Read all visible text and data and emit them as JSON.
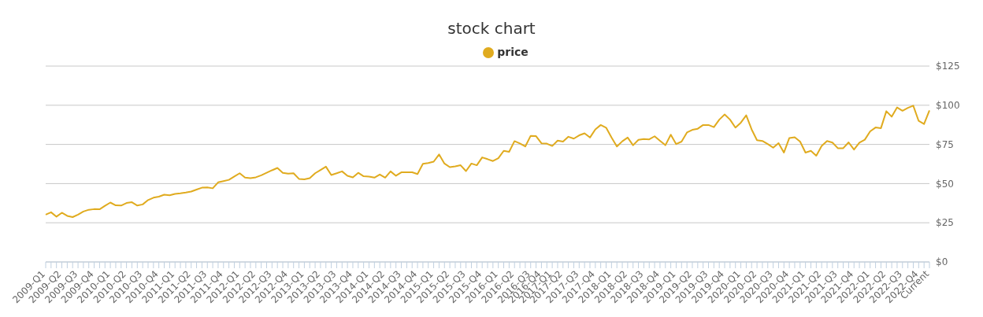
{
  "chart_data": {
    "type": "line",
    "title": "stock chart",
    "categories": [
      "2009-Q1",
      null,
      null,
      "2009-Q2",
      null,
      null,
      "2009-Q3",
      null,
      null,
      "2009-Q4",
      null,
      null,
      "2010-Q1",
      null,
      null,
      "2010-Q2",
      null,
      null,
      "2010-Q3",
      null,
      null,
      "2010-Q4",
      null,
      null,
      "2011-Q1",
      null,
      null,
      "2011-Q2",
      null,
      null,
      "2011-Q3",
      null,
      null,
      "2011-Q4",
      null,
      null,
      "2012-Q1",
      null,
      null,
      "2012-Q2",
      null,
      null,
      "2012-Q3",
      null,
      null,
      "2012-Q4",
      null,
      null,
      "2013-Q1",
      null,
      null,
      "2013-Q2",
      null,
      null,
      "2013-Q3",
      null,
      null,
      "2013-Q4",
      null,
      null,
      "2014-Q1",
      null,
      null,
      "2014-Q2",
      null,
      null,
      "2014-Q3",
      null,
      null,
      "2014-Q4",
      null,
      null,
      "2015-Q1",
      null,
      null,
      "2015-Q2",
      null,
      null,
      "2015-Q3",
      null,
      null,
      "2015-Q4",
      null,
      null,
      "2016-Q1",
      null,
      null,
      "2016-Q2",
      null,
      null,
      "2016-Q3",
      null,
      "2016-Q4",
      null,
      "2017-Q1",
      null,
      "2017-Q2",
      null,
      null,
      "2017-Q3",
      null,
      null,
      "2017-Q4",
      null,
      null,
      "2018-Q1",
      null,
      null,
      "2018-Q2",
      null,
      null,
      "2018-Q3",
      null,
      null,
      "2018-Q4",
      null,
      null,
      "2019-Q1",
      null,
      null,
      "2019-Q2",
      null,
      null,
      "2019-Q3",
      null,
      null,
      "2019-Q4",
      null,
      null,
      "2020-Q1",
      null,
      null,
      "2020-Q2",
      null,
      null,
      "2020-Q3",
      null,
      null,
      "2020-Q4",
      null,
      null,
      "2021-Q1",
      null,
      null,
      "2021-Q2",
      null,
      null,
      "2021-Q3",
      null,
      null,
      "2021-Q4",
      null,
      null,
      "2022-Q1",
      null,
      null,
      "2022-Q2",
      null,
      null,
      "2022-Q3",
      null,
      null,
      "2022-Q4",
      null,
      "Current"
    ],
    "series": [
      {
        "name": "price",
        "color": "#e0ab1f",
        "values": [
          30.2,
          31.7,
          28.9,
          31.4,
          29.4,
          28.6,
          30.2,
          32.2,
          33.3,
          33.7,
          33.6,
          35.8,
          37.9,
          36.1,
          36,
          37.6,
          38.1,
          36,
          36.7,
          39.5,
          41,
          41.7,
          42.9,
          42.5,
          43.4,
          43.8,
          44.3,
          44.9,
          46.2,
          47.4,
          47.6,
          47,
          50.8,
          51.6,
          52.4,
          54.5,
          56.6,
          53.8,
          53.5,
          54,
          55.3,
          56.9,
          58.5,
          60,
          56.9,
          56.3,
          56.6,
          53,
          52.7,
          53.5,
          56.6,
          58.7,
          60.8,
          55.5,
          56.6,
          57.8,
          55,
          54,
          56.9,
          54.7,
          54.5,
          53.8,
          55.8,
          53.8,
          57.8,
          55,
          57.2,
          57.2,
          57.2,
          56.1,
          62.6,
          63.1,
          64,
          68.6,
          62.8,
          60.5,
          61,
          61.7,
          58,
          62.8,
          61.7,
          66.7,
          65.6,
          64.4,
          66.2,
          70.9,
          70.3,
          77.1,
          75.6,
          73.7,
          80.5,
          80.3,
          75.7,
          75.5,
          74,
          77.4,
          76.8,
          79.9,
          78.7,
          80.8,
          82.1,
          79.4,
          84.6,
          87.4,
          85.7,
          79.4,
          73.7,
          77,
          79.4,
          74.5,
          77.9,
          78.4,
          78.2,
          80.2,
          77.3,
          74.5,
          81.2,
          75.2,
          76.8,
          82.6,
          84.3,
          85,
          87.4,
          87.4,
          86,
          90.8,
          94.1,
          90.8,
          85.7,
          88.9,
          93.6,
          84.6,
          77.7,
          77.2,
          75.2,
          72.9,
          75.8,
          69.8,
          79.1,
          79.6,
          76.8,
          69.8,
          70.9,
          67.8,
          74,
          77.2,
          76.2,
          72.6,
          72.6,
          76.3,
          71.7,
          76.1,
          78,
          83.3,
          85.8,
          85.4,
          96.2,
          92.7,
          98.6,
          96.5,
          98.3,
          99.7,
          90,
          88,
          96.7
        ]
      }
    ],
    "ylim": [
      0,
      125
    ],
    "yticks": [
      {
        "value": 0,
        "label": "$0"
      },
      {
        "value": 25,
        "label": "$25"
      },
      {
        "value": 50,
        "label": "$50"
      },
      {
        "value": 75,
        "label": "$75"
      },
      {
        "value": 100,
        "label": "$100"
      },
      {
        "value": 125,
        "label": "$125"
      }
    ],
    "grid": "y",
    "legend": "top",
    "marker": "none",
    "line_style": "solid"
  }
}
